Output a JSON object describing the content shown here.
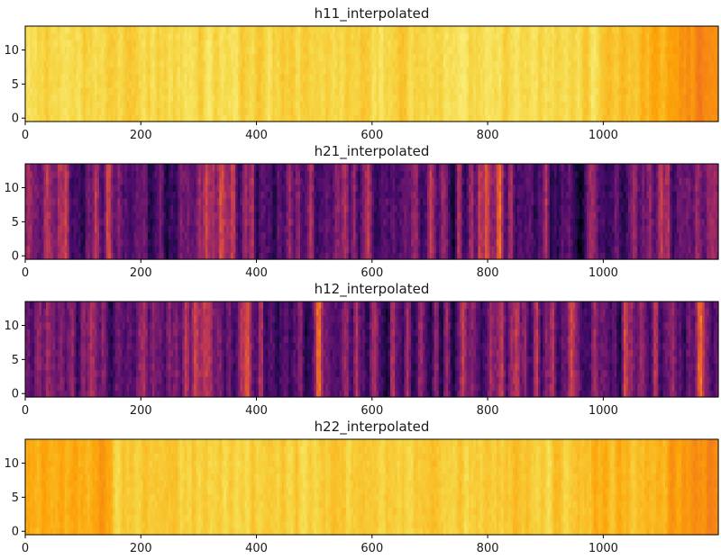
{
  "chart_data": [
    {
      "type": "heatmap",
      "title": "h11_interpolated",
      "xlabel": "",
      "ylabel": "",
      "xlim": [
        0,
        1199
      ],
      "ylim": [
        -0.5,
        13.5
      ],
      "xticks": [
        0,
        200,
        400,
        600,
        800,
        1000
      ],
      "yticks": [
        0,
        5,
        10
      ],
      "colormap": "inferno",
      "value_range": [
        0.62,
        0.95
      ],
      "value_mean": 0.86,
      "trend": "uniform bright yellow-orange, darkening to orange past x≈1000"
    },
    {
      "type": "heatmap",
      "title": "h21_interpolated",
      "xlabel": "",
      "ylabel": "",
      "xlim": [
        0,
        1199
      ],
      "ylim": [
        -0.5,
        13.5
      ],
      "xticks": [
        0,
        200,
        400,
        600,
        800,
        1000
      ],
      "yticks": [
        0,
        5,
        10
      ],
      "colormap": "inferno",
      "value_range": [
        0.0,
        0.8
      ],
      "value_mean": 0.3,
      "trend": "dark purple with many narrow vertical orange streaks"
    },
    {
      "type": "heatmap",
      "title": "h12_interpolated",
      "xlabel": "",
      "ylabel": "",
      "xlim": [
        0,
        1199
      ],
      "ylim": [
        -0.5,
        13.5
      ],
      "xticks": [
        0,
        200,
        400,
        600,
        800,
        1000
      ],
      "yticks": [
        0,
        5,
        10
      ],
      "colormap": "inferno",
      "value_range": [
        0.0,
        0.8
      ],
      "value_mean": 0.28,
      "trend": "dark purple with many narrow vertical orange streaks"
    },
    {
      "type": "heatmap",
      "title": "h22_interpolated",
      "xlabel": "",
      "ylabel": "",
      "xlim": [
        0,
        1199
      ],
      "ylim": [
        -0.5,
        13.5
      ],
      "xticks": [
        0,
        200,
        400,
        600,
        800,
        1000
      ],
      "yticks": [
        0,
        5,
        10
      ],
      "colormap": "inferno",
      "value_range": [
        0.65,
        0.93
      ],
      "value_mean": 0.84,
      "trend": "orange at left edge, bright yellow-orange middle, orange past x≈1000"
    }
  ],
  "colors": {
    "axis": "#000000",
    "text": "#1a1a1a",
    "background": "#ffffff"
  }
}
